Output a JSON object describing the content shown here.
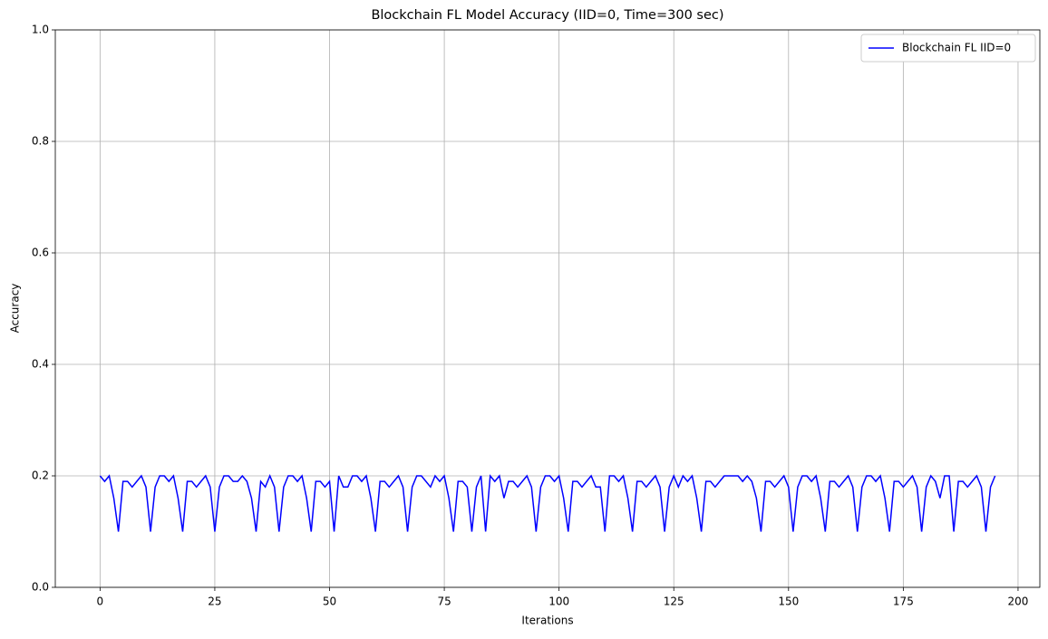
{
  "chart_data": {
    "type": "line",
    "title": "Blockchain FL Model Accuracy (IID=0, Time=300 sec)",
    "x_label": "Iterations",
    "y_label": "Accuracy",
    "xlim": [
      -9.75,
      204.75
    ],
    "ylim": [
      0,
      1
    ],
    "xticks": [
      0,
      25,
      50,
      75,
      100,
      125,
      150,
      175,
      200
    ],
    "yticks": [
      {
        "value": 0,
        "label": "0.0"
      },
      {
        "value": 0.2,
        "label": "0.2"
      },
      {
        "value": 0.4,
        "label": "0.4"
      },
      {
        "value": 0.6,
        "label": "0.6"
      },
      {
        "value": 0.8,
        "label": "0.8"
      },
      {
        "value": 1,
        "label": "1.0"
      }
    ],
    "grid": true,
    "legend": "upper right",
    "x": [
      0,
      1,
      2,
      3,
      4,
      5,
      6,
      7,
      8,
      9,
      10,
      11,
      12,
      13,
      14,
      15,
      16,
      17,
      18,
      19,
      20,
      21,
      22,
      23,
      24,
      25,
      26,
      27,
      28,
      29,
      30,
      31,
      32,
      33,
      34,
      35,
      36,
      37,
      38,
      39,
      40,
      41,
      42,
      43,
      44,
      45,
      46,
      47,
      48,
      49,
      50,
      51,
      52,
      53,
      54,
      55,
      56,
      57,
      58,
      59,
      60,
      61,
      62,
      63,
      64,
      65,
      66,
      67,
      68,
      69,
      70,
      71,
      72,
      73,
      74,
      75,
      76,
      77,
      78,
      79,
      80,
      81,
      82,
      83,
      84,
      85,
      86,
      87,
      88,
      89,
      90,
      91,
      92,
      93,
      94,
      95,
      96,
      97,
      98,
      99,
      100,
      101,
      102,
      103,
      104,
      105,
      106,
      107,
      108,
      109,
      110,
      111,
      112,
      113,
      114,
      115,
      116,
      117,
      118,
      119,
      120,
      121,
      122,
      123,
      124,
      125,
      126,
      127,
      128,
      129,
      130,
      131,
      132,
      133,
      134,
      135,
      136,
      137,
      138,
      139,
      140,
      141,
      142,
      143,
      144,
      145,
      146,
      147,
      148,
      149,
      150,
      151,
      152,
      153,
      154,
      155,
      156,
      157,
      158,
      159,
      160,
      161,
      162,
      163,
      164,
      165,
      166,
      167,
      168,
      169,
      170,
      171,
      172,
      173,
      174,
      175,
      176,
      177,
      178,
      179,
      180,
      181,
      182,
      183,
      184,
      185,
      186,
      187,
      188,
      189,
      190,
      191,
      192,
      193,
      194,
      195
    ],
    "series": [
      {
        "name": "Blockchain FL IID=0",
        "color": "#0000ff",
        "values": [
          0.2,
          0.19,
          0.2,
          0.16,
          0.1,
          0.19,
          0.19,
          0.18,
          0.19,
          0.2,
          0.18,
          0.1,
          0.18,
          0.2,
          0.2,
          0.19,
          0.2,
          0.16,
          0.1,
          0.19,
          0.19,
          0.18,
          0.19,
          0.2,
          0.18,
          0.1,
          0.18,
          0.2,
          0.2,
          0.19,
          0.19,
          0.2,
          0.19,
          0.16,
          0.1,
          0.19,
          0.18,
          0.2,
          0.18,
          0.1,
          0.18,
          0.2,
          0.2,
          0.19,
          0.2,
          0.16,
          0.1,
          0.19,
          0.19,
          0.18,
          0.19,
          0.1,
          0.2,
          0.18,
          0.18,
          0.2,
          0.2,
          0.19,
          0.2,
          0.16,
          0.1,
          0.19,
          0.19,
          0.18,
          0.19,
          0.2,
          0.18,
          0.1,
          0.18,
          0.2,
          0.2,
          0.19,
          0.18,
          0.2,
          0.19,
          0.2,
          0.16,
          0.1,
          0.19,
          0.19,
          0.18,
          0.1,
          0.18,
          0.2,
          0.1,
          0.2,
          0.19,
          0.2,
          0.16,
          0.19,
          0.19,
          0.18,
          0.19,
          0.2,
          0.18,
          0.1,
          0.18,
          0.2,
          0.2,
          0.19,
          0.2,
          0.16,
          0.1,
          0.19,
          0.19,
          0.18,
          0.19,
          0.2,
          0.18,
          0.18,
          0.1,
          0.2,
          0.2,
          0.19,
          0.2,
          0.16,
          0.1,
          0.19,
          0.19,
          0.18,
          0.19,
          0.2,
          0.18,
          0.1,
          0.18,
          0.2,
          0.18,
          0.2,
          0.19,
          0.2,
          0.16,
          0.1,
          0.19,
          0.19,
          0.18,
          0.19,
          0.2,
          0.2,
          0.2,
          0.2,
          0.19,
          0.2,
          0.19,
          0.16,
          0.1,
          0.19,
          0.19,
          0.18,
          0.19,
          0.2,
          0.18,
          0.1,
          0.18,
          0.2,
          0.2,
          0.19,
          0.2,
          0.16,
          0.1,
          0.19,
          0.19,
          0.18,
          0.19,
          0.2,
          0.18,
          0.1,
          0.18,
          0.2,
          0.2,
          0.19,
          0.2,
          0.16,
          0.1,
          0.19,
          0.19,
          0.18,
          0.19,
          0.2,
          0.18,
          0.1,
          0.18,
          0.2,
          0.19,
          0.16,
          0.2,
          0.2,
          0.1,
          0.19,
          0.19,
          0.18,
          0.19,
          0.2,
          0.18,
          0.1,
          0.18,
          0.2
        ]
      }
    ]
  }
}
